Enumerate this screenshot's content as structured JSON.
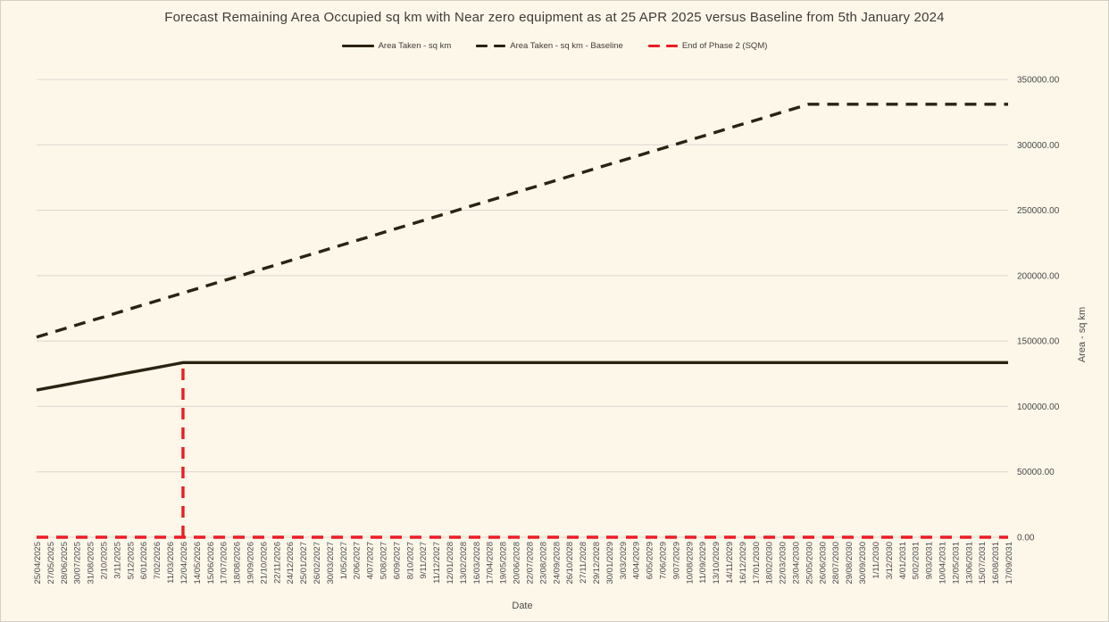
{
  "page": {
    "background_color": "#FDF7EA",
    "border_color": "#D3CFC6"
  },
  "chart_data": {
    "type": "line",
    "title": "Forecast Remaining Area Occupied sq km with Near zero equipment as at 25 APR 2025 versus Baseline from 5th January 2024",
    "xlabel": "Date",
    "ylabel": "Area - sq km",
    "ylim": [
      0,
      350000
    ],
    "y_tick_step": 50000,
    "y_tick_labels": [
      "0.00",
      "50000.00",
      "100000.00",
      "150000.00",
      "200000.00",
      "250000.00",
      "300000.00",
      "350000.00"
    ],
    "grid": "horizontal",
    "legend_position": "top",
    "categories": [
      "25/04/2025",
      "27/05/2025",
      "28/06/2025",
      "30/07/2025",
      "31/08/2025",
      "2/10/2025",
      "3/11/2025",
      "5/12/2025",
      "6/01/2026",
      "7/02/2026",
      "11/03/2026",
      "12/04/2026",
      "14/05/2026",
      "15/06/2026",
      "17/07/2026",
      "18/08/2026",
      "19/09/2026",
      "21/10/2026",
      "22/11/2026",
      "24/12/2026",
      "25/01/2027",
      "26/02/2027",
      "30/03/2027",
      "1/05/2027",
      "2/06/2027",
      "4/07/2027",
      "5/08/2027",
      "6/09/2027",
      "8/10/2027",
      "9/11/2027",
      "11/12/2027",
      "12/01/2028",
      "13/02/2028",
      "16/03/2028",
      "17/04/2028",
      "19/05/2028",
      "20/06/2028",
      "22/07/2028",
      "23/08/2028",
      "24/09/2028",
      "26/10/2028",
      "27/11/2028",
      "29/12/2028",
      "30/01/2029",
      "3/03/2029",
      "4/04/2029",
      "6/05/2029",
      "7/06/2029",
      "9/07/2029",
      "10/08/2029",
      "11/09/2029",
      "13/10/2029",
      "14/11/2029",
      "16/12/2029",
      "17/01/2030",
      "18/02/2030",
      "22/03/2030",
      "23/04/2030",
      "25/05/2030",
      "26/06/2030",
      "28/07/2030",
      "29/08/2030",
      "30/09/2030",
      "1/11/2030",
      "3/12/2030",
      "4/01/2031",
      "5/02/2031",
      "9/03/2031",
      "10/04/2031",
      "12/05/2031",
      "13/06/2031",
      "15/07/2031",
      "16/08/2031",
      "17/09/2031"
    ],
    "series": [
      {
        "name": "Area Taken - sq km",
        "line_style": "solid",
        "color": "#2B2312",
        "values": [
          112500,
          114400,
          116300,
          118200,
          120100,
          122000,
          124000,
          125900,
          127800,
          129700,
          131600,
          133500,
          133500,
          133500,
          133500,
          133500,
          133500,
          133500,
          133500,
          133500,
          133500,
          133500,
          133500,
          133500,
          133500,
          133500,
          133500,
          133500,
          133500,
          133500,
          133500,
          133500,
          133500,
          133500,
          133500,
          133500,
          133500,
          133500,
          133500,
          133500,
          133500,
          133500,
          133500,
          133500,
          133500,
          133500,
          133500,
          133500,
          133500,
          133500,
          133500,
          133500,
          133500,
          133500,
          133500,
          133500,
          133500,
          133500,
          133500,
          133500,
          133500,
          133500,
          133500,
          133500,
          133500,
          133500,
          133500,
          133500,
          133500,
          133500,
          133500,
          133500,
          133500,
          133500
        ]
      },
      {
        "name": "Area Taken - sq km - Baseline",
        "line_style": "dashed",
        "color": "#2B2312",
        "values": [
          153000,
          156100,
          159100,
          162200,
          165300,
          168300,
          171400,
          174500,
          177600,
          180600,
          183700,
          186800,
          189800,
          192900,
          196000,
          199000,
          202100,
          205200,
          208200,
          211300,
          214400,
          217400,
          220500,
          223600,
          226700,
          229700,
          232800,
          235900,
          238900,
          242000,
          245100,
          248100,
          251200,
          254300,
          257300,
          260400,
          263500,
          266600,
          269600,
          272700,
          275800,
          278800,
          281900,
          285000,
          288000,
          291100,
          294200,
          297200,
          300300,
          303400,
          306400,
          309500,
          312600,
          315700,
          318700,
          321800,
          324900,
          327900,
          331000,
          331000,
          331000,
          331000,
          331000,
          331000,
          331000,
          331000,
          331000,
          331000,
          331000,
          331000,
          331000,
          331000,
          331000,
          331000
        ]
      },
      {
        "name": "End of Phase 2 (SQM)",
        "line_style": "dashed",
        "color": "#ED1C24",
        "spike": {
          "index": 11,
          "value": 133500,
          "date": "12/04/2026"
        },
        "values": [
          0,
          0,
          0,
          0,
          0,
          0,
          0,
          0,
          0,
          0,
          0,
          133500,
          0,
          0,
          0,
          0,
          0,
          0,
          0,
          0,
          0,
          0,
          0,
          0,
          0,
          0,
          0,
          0,
          0,
          0,
          0,
          0,
          0,
          0,
          0,
          0,
          0,
          0,
          0,
          0,
          0,
          0,
          0,
          0,
          0,
          0,
          0,
          0,
          0,
          0,
          0,
          0,
          0,
          0,
          0,
          0,
          0,
          0,
          0,
          0,
          0,
          0,
          0,
          0,
          0,
          0,
          0,
          0,
          0,
          0,
          0,
          0,
          0,
          0
        ]
      }
    ]
  }
}
